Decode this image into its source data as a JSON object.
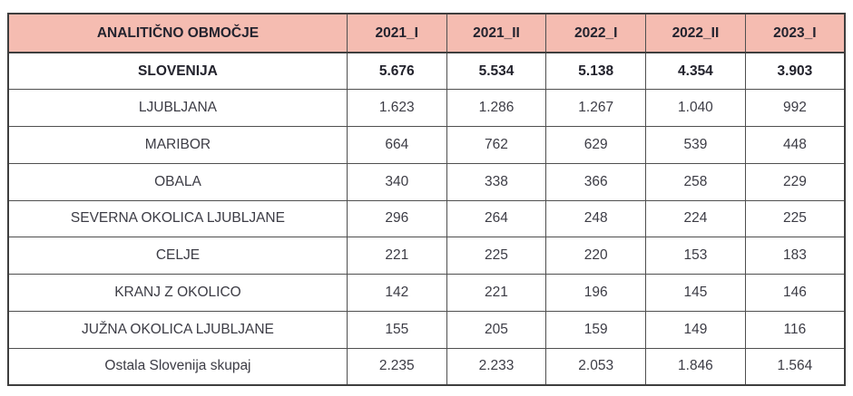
{
  "colors": {
    "header_bg": "#f5bcb1",
    "border": "#4f4f4f",
    "outer_border": "#3e3e3e",
    "header_text": "#23232e",
    "body_text": "#3c3c45"
  },
  "chart_data": {
    "type": "table",
    "title": "",
    "columns": [
      "ANALITIČNO OBMOČJE",
      "2021_I",
      "2021_II",
      "2022_I",
      "2022_II",
      "2023_I"
    ],
    "rows": [
      {
        "label": "SLOVENIJA",
        "values": [
          "5.676",
          "5.534",
          "5.138",
          "4.354",
          "3.903"
        ],
        "bold": true
      },
      {
        "label": "LJUBLJANA",
        "values": [
          "1.623",
          "1.286",
          "1.267",
          "1.040",
          "992"
        ],
        "bold": false
      },
      {
        "label": "MARIBOR",
        "values": [
          "664",
          "762",
          "629",
          "539",
          "448"
        ],
        "bold": false
      },
      {
        "label": "OBALA",
        "values": [
          "340",
          "338",
          "366",
          "258",
          "229"
        ],
        "bold": false
      },
      {
        "label": "SEVERNA OKOLICA LJUBLJANE",
        "values": [
          "296",
          "264",
          "248",
          "224",
          "225"
        ],
        "bold": false
      },
      {
        "label": "CELJE",
        "values": [
          "221",
          "225",
          "220",
          "153",
          "183"
        ],
        "bold": false
      },
      {
        "label": "KRANJ Z OKOLICO",
        "values": [
          "142",
          "221",
          "196",
          "145",
          "146"
        ],
        "bold": false
      },
      {
        "label": "JUŽNA OKOLICA LJUBLJANE",
        "values": [
          "155",
          "205",
          "159",
          "149",
          "116"
        ],
        "bold": false
      },
      {
        "label": "Ostala Slovenija skupaj",
        "values": [
          "2.235",
          "2.233",
          "2.053",
          "1.846",
          "1.564"
        ],
        "bold": false
      }
    ]
  }
}
